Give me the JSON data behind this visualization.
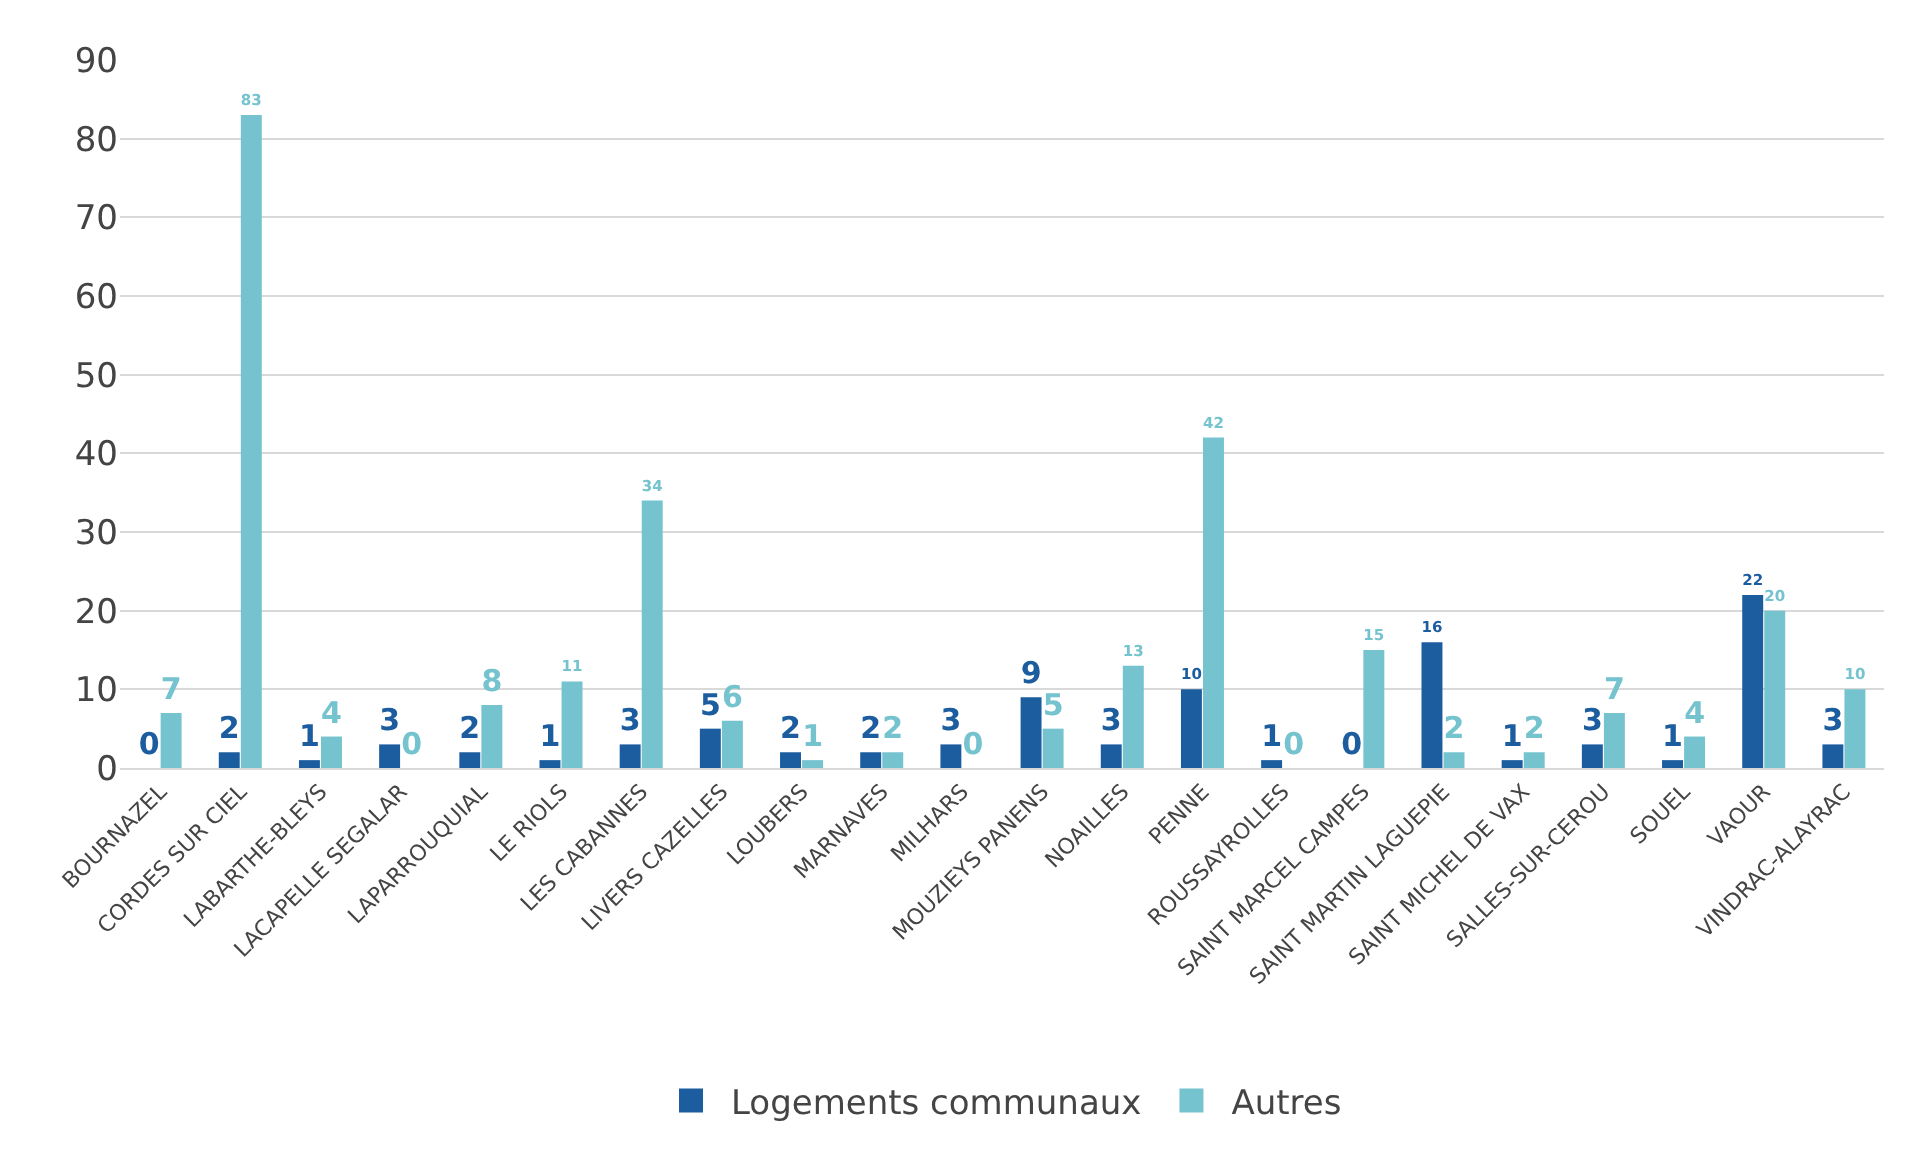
{
  "chart_data": {
    "type": "bar",
    "categories": [
      "BOURNAZEL",
      "CORDES SUR CIEL",
      "LABARTHE-BLEYS",
      "LACAPELLE SEGALAR",
      "LAPARROUQUIAL",
      "LE RIOLS",
      "LES CABANNES",
      "LIVERS CAZELLES",
      "LOUBERS",
      "MARNAVES",
      "MILHARS",
      "MOUZIEYS PANENS",
      "NOAILLES",
      "PENNE",
      "ROUSSAYROLLES",
      "SAINT MARCEL CAMPES",
      "SAINT MARTIN LAGUEPIE",
      "SAINT MICHEL DE VAX",
      "SALLES-SUR-CEROU",
      "SOUEL",
      "VAOUR",
      "VINDRAC-ALAYRAC"
    ],
    "series": [
      {
        "name": "Logements communaux",
        "color": "#1b5d9e",
        "values": [
          0,
          2,
          1,
          3,
          2,
          1,
          3,
          5,
          2,
          2,
          3,
          9,
          3,
          10,
          1,
          0,
          16,
          1,
          3,
          1,
          22,
          3
        ]
      },
      {
        "name": "Autres",
        "color": "#74c3cf",
        "values": [
          7,
          83,
          4,
          0,
          8,
          11,
          34,
          6,
          1,
          2,
          0,
          5,
          13,
          42,
          0,
          15,
          2,
          2,
          7,
          4,
          20,
          10
        ]
      }
    ],
    "ylim": [
      0,
      90
    ],
    "yticks": [
      0,
      10,
      20,
      30,
      40,
      50,
      60,
      70,
      80,
      90
    ],
    "grid": "y",
    "legend": "bottom",
    "data_labels": true
  }
}
